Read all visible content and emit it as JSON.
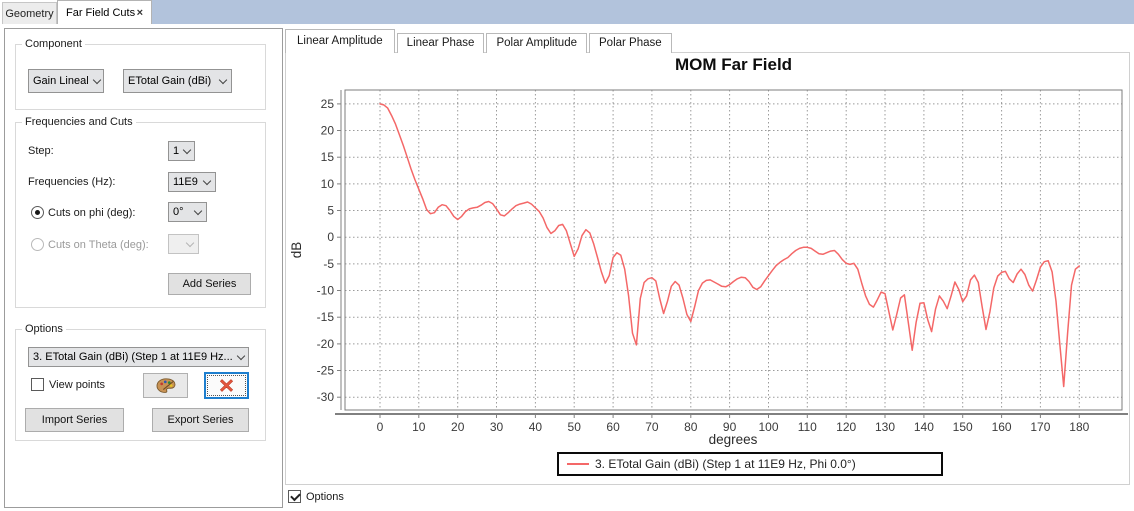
{
  "header": {
    "doc_tabs": [
      {
        "label": "Geometry",
        "active": false
      },
      {
        "label": "Far Field Cuts",
        "active": true,
        "closable": true
      }
    ],
    "close_glyph": "×",
    "accent_strip_color": "#b2c3dc"
  },
  "left_panel": {
    "component": {
      "legend": "Component",
      "type_combo": "Gain Lineal",
      "field_combo": "ETotal Gain (dBi)"
    },
    "frequencies_and_cuts": {
      "legend": "Frequencies and Cuts",
      "step_label": "Step:",
      "step_value": "1",
      "frequencies_label": "Frequencies (Hz):",
      "frequencies_value": "11E9",
      "cuts_phi_label": "Cuts on phi (deg):",
      "cuts_phi_value": "0°",
      "cuts_phi_selected": true,
      "cuts_theta_label": "Cuts on Theta (deg):",
      "cuts_theta_value": "",
      "cuts_theta_enabled": false,
      "add_series_label": "Add Series"
    },
    "options": {
      "legend": "Options",
      "series_combo_value": "3. ETotal Gain (dBi) (Step 1 at 11E9 Hz...",
      "view_points_label": "View points",
      "view_points_checked": false,
      "palette_icon": "color-palette",
      "delete_icon": "red-cross",
      "import_label": "Import Series",
      "export_label": "Export Series"
    }
  },
  "right_panel": {
    "tabs": [
      {
        "label": "Linear Amplitude",
        "active": true
      },
      {
        "label": "Linear Phase",
        "active": false
      },
      {
        "label": "Polar Amplitude",
        "active": false
      },
      {
        "label": "Polar Phase",
        "active": false
      }
    ]
  },
  "footer": {
    "options_label": "Options",
    "options_checked": true
  },
  "chart_data": {
    "type": "line",
    "title": "MOM Far Field",
    "xlabel": "degrees",
    "ylabel": "dB",
    "xlim": [
      -9,
      191
    ],
    "ylim": [
      -32.4,
      27.6
    ],
    "x_ticks": [
      0,
      10,
      20,
      30,
      40,
      50,
      60,
      70,
      80,
      90,
      100,
      110,
      120,
      130,
      140,
      150,
      160,
      170,
      180
    ],
    "y_ticks": [
      -30,
      -25,
      -20,
      -15,
      -10,
      -5,
      0,
      5,
      10,
      15,
      20,
      25
    ],
    "grid": true,
    "legend_position": "bottom",
    "series": [
      {
        "name": "3. ETotal Gain (dBi) (Step 1 at 11E9 Hz, Phi 0.0°)",
        "color": "#f46868",
        "x_start": 0,
        "x_step": 1,
        "y": [
          25.0,
          24.8,
          24.2,
          22.8,
          21.2,
          19.2,
          17.2,
          15.0,
          12.8,
          10.8,
          9.0,
          7.2,
          5.2,
          4.4,
          4.6,
          5.6,
          6.1,
          5.9,
          5.0,
          3.9,
          3.3,
          3.9,
          4.8,
          5.3,
          5.5,
          5.6,
          6.0,
          6.5,
          6.7,
          6.3,
          5.3,
          4.2,
          4.0,
          4.6,
          5.3,
          5.9,
          6.2,
          6.4,
          6.6,
          6.2,
          5.5,
          4.8,
          3.6,
          1.8,
          0.7,
          1.2,
          2.2,
          2.4,
          1.2,
          -1.2,
          -3.6,
          -2.2,
          0.3,
          1.4,
          0.8,
          -1.2,
          -3.8,
          -6.5,
          -8.6,
          -7.2,
          -3.8,
          -2.9,
          -3.4,
          -6.0,
          -11.0,
          -18.0,
          -20.2,
          -11.5,
          -8.5,
          -7.8,
          -7.6,
          -8.2,
          -11.5,
          -14.3,
          -12.0,
          -9.2,
          -8.3,
          -9.0,
          -11.5,
          -14.5,
          -15.8,
          -13.0,
          -10.0,
          -8.6,
          -8.1,
          -8.0,
          -8.4,
          -8.8,
          -9.2,
          -9.3,
          -8.9,
          -8.3,
          -7.8,
          -7.5,
          -7.6,
          -8.3,
          -9.4,
          -9.8,
          -9.3,
          -8.2,
          -7.2,
          -6.2,
          -5.3,
          -4.7,
          -4.2,
          -3.8,
          -3.1,
          -2.5,
          -2.1,
          -1.9,
          -1.9,
          -2.1,
          -2.6,
          -3.1,
          -3.2,
          -2.9,
          -2.6,
          -2.5,
          -3.2,
          -4.2,
          -4.9,
          -5.1,
          -4.9,
          -6.0,
          -8.6,
          -11.0,
          -12.6,
          -13.1,
          -11.8,
          -10.3,
          -10.6,
          -14.0,
          -17.4,
          -14.5,
          -11.4,
          -10.8,
          -16.0,
          -21.2,
          -16.0,
          -12.4,
          -12.3,
          -15.5,
          -17.7,
          -13.5,
          -11.0,
          -12.0,
          -13.4,
          -11.0,
          -8.4,
          -9.8,
          -12.1,
          -11.0,
          -8.0,
          -7.1,
          -8.5,
          -13.0,
          -17.3,
          -14.0,
          -9.5,
          -7.3,
          -6.6,
          -6.4,
          -7.8,
          -8.5,
          -6.9,
          -6.0,
          -7.0,
          -9.0,
          -10.1,
          -8.0,
          -5.6,
          -4.6,
          -4.4,
          -6.5,
          -12.0,
          -20.0,
          -28.0,
          -18.0,
          -9.0,
          -6.0,
          -5.4
        ]
      }
    ]
  }
}
